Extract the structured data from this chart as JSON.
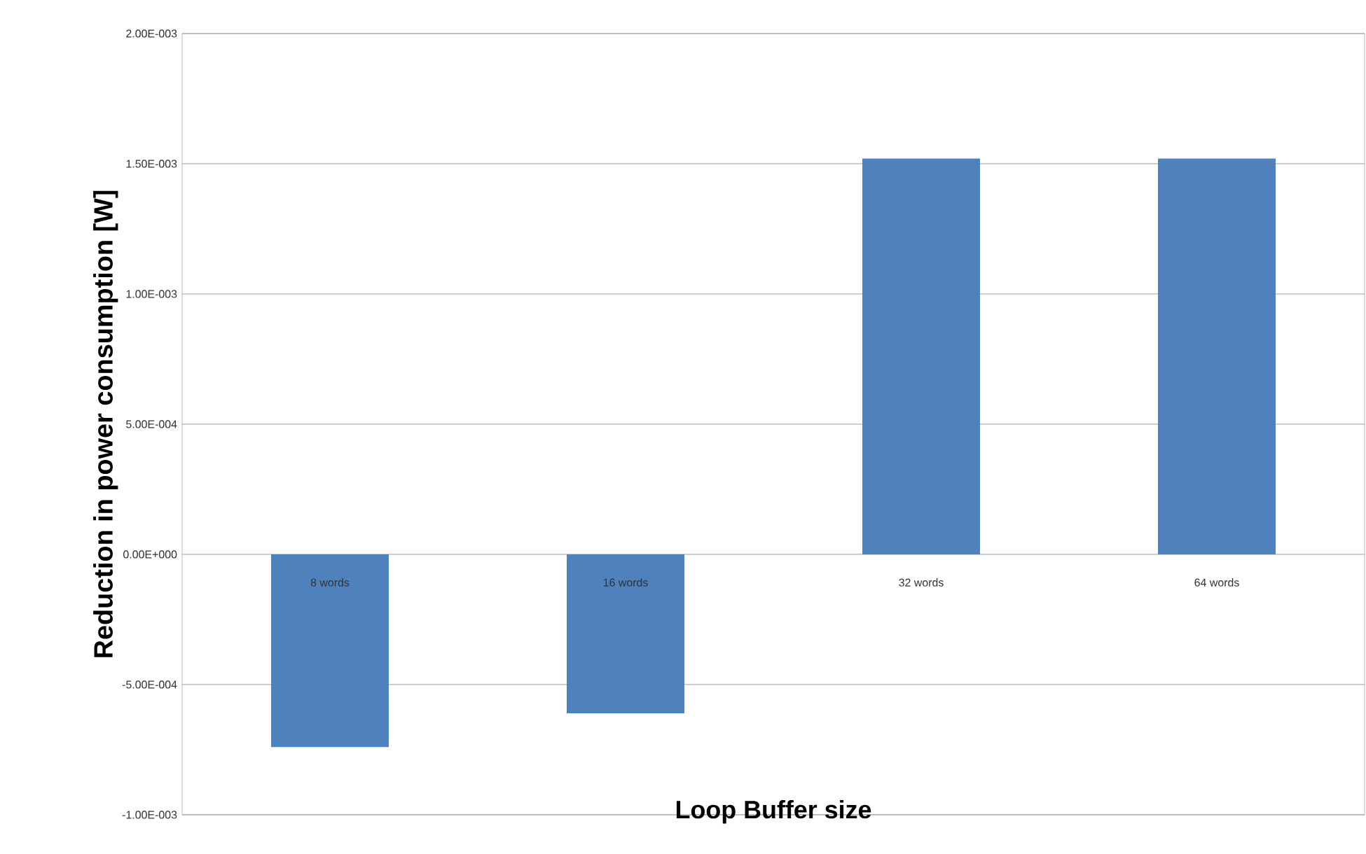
{
  "chart_data": {
    "type": "bar",
    "xlabel": "Loop Buffer size",
    "ylabel": "Reduction in power consumption [W]",
    "categories": [
      "8 words",
      "16 words",
      "32 words",
      "64 words"
    ],
    "values": [
      -0.00074,
      -0.00061,
      0.00152,
      0.00152
    ],
    "color": "#4f81bd",
    "ylim": [
      -0.001,
      0.002
    ],
    "yticks": [
      {
        "value": -0.001,
        "label": "-1.00E-003"
      },
      {
        "value": -0.0005,
        "label": "-5.00E-004"
      },
      {
        "value": 0,
        "label": "0.00E+000"
      },
      {
        "value": 0.0005,
        "label": "5.00E-004"
      },
      {
        "value": 0.001,
        "label": "1.00E-003"
      },
      {
        "value": 0.0015,
        "label": "1.50E-003"
      },
      {
        "value": 0.002,
        "label": "2.00E-003"
      }
    ],
    "grid": true
  }
}
